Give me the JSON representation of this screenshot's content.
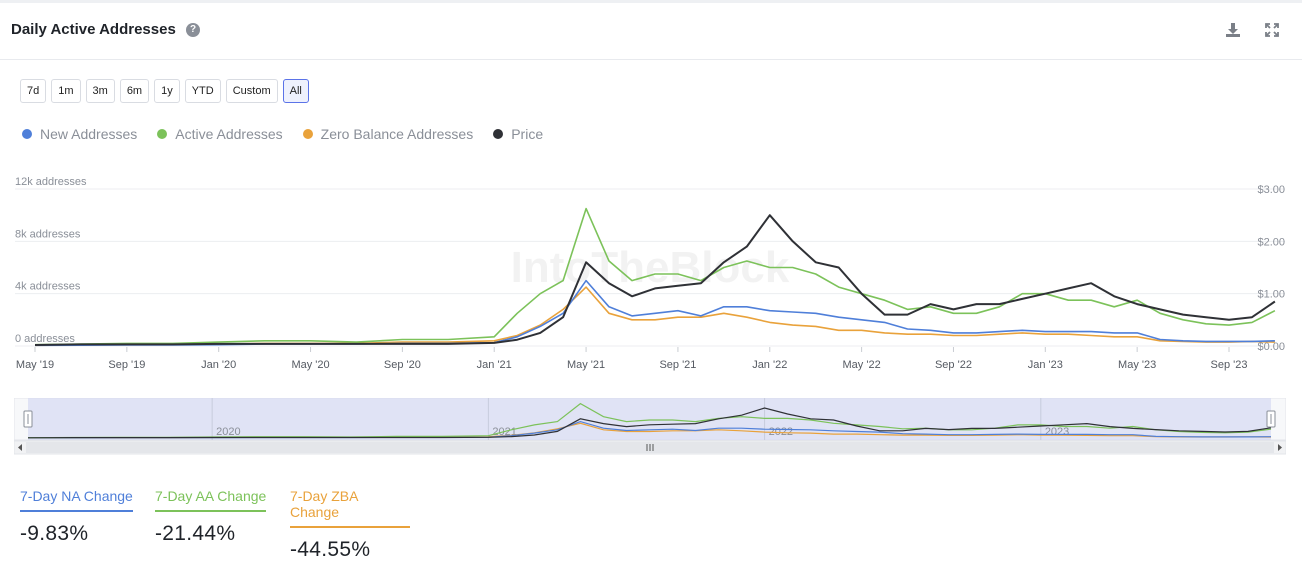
{
  "header": {
    "title": "Daily Active Addresses",
    "help_icon": "question-circle-icon"
  },
  "toolbar": {
    "download_icon": "download-icon",
    "expand_icon": "expand-icon"
  },
  "range_buttons": [
    "7d",
    "1m",
    "3m",
    "6m",
    "1y",
    "YTD",
    "Custom",
    "All"
  ],
  "range_selected": "All",
  "legend": [
    {
      "label": "New Addresses",
      "color": "#4f7fd9"
    },
    {
      "label": "Active Addresses",
      "color": "#7cc25a"
    },
    {
      "label": "Zero Balance Addresses",
      "color": "#e9a23b"
    },
    {
      "label": "Price",
      "color": "#2f3136"
    }
  ],
  "watermark": "IntoTheBlock",
  "navigator": {
    "years": [
      "2020",
      "2021",
      "2022",
      "2023"
    ]
  },
  "stats": [
    {
      "label": "7-Day NA Change",
      "value": "-9.83%",
      "color": "#4f7fd9"
    },
    {
      "label": "7-Day AA Change",
      "value": "-21.44%",
      "color": "#7cc25a"
    },
    {
      "label": "7-Day ZBA Change",
      "value": "-44.55%",
      "color": "#e9a23b"
    }
  ],
  "chart_data": {
    "type": "line",
    "title": "Daily Active Addresses",
    "x_ticks": [
      "May '19",
      "Sep '19",
      "Jan '20",
      "May '20",
      "Sep '20",
      "Jan '21",
      "May '21",
      "Sep '21",
      "Jan '22",
      "May '22",
      "Sep '22",
      "Jan '23",
      "May '23",
      "Sep '23"
    ],
    "y_left": {
      "ticks": [
        "0 addresses",
        "4k addresses",
        "8k addresses",
        "12k addresses"
      ],
      "range": [
        0,
        12000
      ]
    },
    "y_right": {
      "ticks": [
        "$0.00",
        "$1.00",
        "$2.00",
        "$3.00"
      ],
      "range": [
        0,
        3
      ]
    },
    "x": [
      "2019-05",
      "2019-07",
      "2019-09",
      "2019-11",
      "2020-01",
      "2020-03",
      "2020-05",
      "2020-07",
      "2020-09",
      "2020-11",
      "2021-01",
      "2021-02",
      "2021-03",
      "2021-04",
      "2021-05",
      "2021-06",
      "2021-07",
      "2021-08",
      "2021-09",
      "2021-10",
      "2021-11",
      "2021-12",
      "2022-01",
      "2022-02",
      "2022-03",
      "2022-04",
      "2022-05",
      "2022-06",
      "2022-07",
      "2022-08",
      "2022-09",
      "2022-10",
      "2022-11",
      "2022-12",
      "2023-01",
      "2023-02",
      "2023-03",
      "2023-04",
      "2023-05",
      "2023-06",
      "2023-07",
      "2023-08",
      "2023-09",
      "2023-10",
      "2023-11"
    ],
    "series": [
      {
        "name": "New Addresses",
        "axis": "left",
        "values": [
          50,
          60,
          80,
          80,
          100,
          150,
          150,
          150,
          200,
          200,
          250,
          700,
          1500,
          2500,
          5000,
          3000,
          2300,
          2500,
          2700,
          2300,
          3000,
          3000,
          2700,
          2600,
          2500,
          2200,
          2000,
          1800,
          1300,
          1200,
          1000,
          1000,
          1100,
          1200,
          1100,
          1100,
          1100,
          1000,
          1000,
          500,
          400,
          350,
          350,
          350,
          400
        ]
      },
      {
        "name": "Active Addresses",
        "axis": "left",
        "values": [
          100,
          150,
          200,
          200,
          300,
          400,
          400,
          300,
          500,
          500,
          700,
          2500,
          4000,
          5000,
          10500,
          6500,
          5000,
          5500,
          5500,
          5000,
          6000,
          6500,
          6000,
          6000,
          5500,
          4500,
          4000,
          3500,
          2800,
          3000,
          2500,
          2500,
          3000,
          4000,
          4000,
          3500,
          3500,
          3000,
          3500,
          2500,
          2000,
          1700,
          1600,
          1800,
          2700
        ]
      },
      {
        "name": "Zero Balance Addresses",
        "axis": "left",
        "values": [
          50,
          80,
          100,
          100,
          150,
          200,
          200,
          200,
          300,
          300,
          400,
          800,
          1600,
          2800,
          4500,
          2500,
          2000,
          2000,
          2200,
          2200,
          2500,
          2200,
          1800,
          1600,
          1500,
          1200,
          1200,
          1000,
          900,
          900,
          800,
          800,
          900,
          1000,
          900,
          900,
          800,
          700,
          700,
          400,
          350,
          300,
          300,
          350,
          300
        ]
      },
      {
        "name": "Price",
        "axis": "right",
        "values": [
          0.02,
          0.03,
          0.03,
          0.03,
          0.04,
          0.04,
          0.04,
          0.04,
          0.04,
          0.04,
          0.06,
          0.12,
          0.25,
          0.55,
          1.6,
          1.2,
          0.95,
          1.1,
          1.15,
          1.2,
          1.6,
          1.9,
          2.5,
          2.0,
          1.6,
          1.5,
          1.0,
          0.6,
          0.6,
          0.8,
          0.7,
          0.8,
          0.8,
          0.9,
          1.0,
          1.1,
          1.2,
          0.95,
          0.8,
          0.7,
          0.6,
          0.55,
          0.5,
          0.55,
          0.85
        ]
      }
    ],
    "grid": true
  }
}
